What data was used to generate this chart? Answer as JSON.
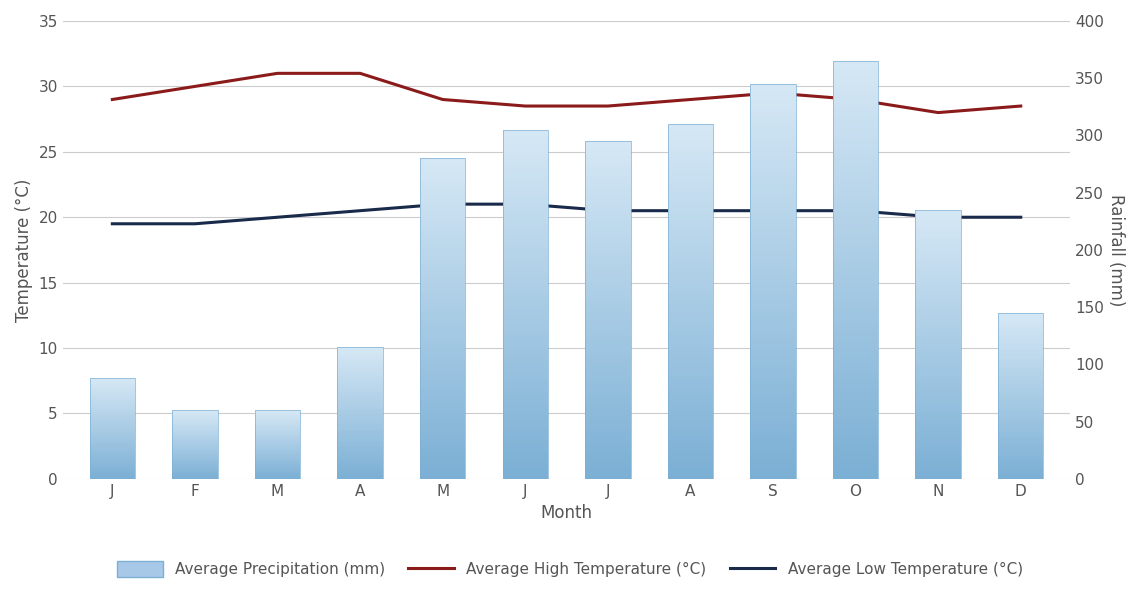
{
  "months": [
    "J",
    "F",
    "M",
    "A",
    "M",
    "J",
    "J",
    "A",
    "S",
    "O",
    "N",
    "D"
  ],
  "precipitation_mm": [
    88,
    60,
    60,
    115,
    280,
    305,
    295,
    310,
    345,
    365,
    235,
    145
  ],
  "avg_high_temp": [
    29,
    30,
    31,
    31,
    29,
    28.5,
    28.5,
    29,
    29.5,
    29,
    28,
    28.5
  ],
  "avg_low_temp": [
    19.5,
    19.5,
    20,
    20.5,
    21,
    21,
    20.5,
    20.5,
    20.5,
    20.5,
    20,
    20
  ],
  "bar_color_bottom": "#7bafd4",
  "bar_color_top": "#d6e8f5",
  "bar_edge_color": "#7bafd4",
  "line_high_color": "#8b1a1a",
  "line_low_color": "#1a2a4a",
  "temp_ylim": [
    0,
    35
  ],
  "rain_ylim": [
    0,
    400
  ],
  "temp_yticks": [
    0,
    5,
    10,
    15,
    20,
    25,
    30,
    35
  ],
  "rain_yticks": [
    0,
    50,
    100,
    150,
    200,
    250,
    300,
    350,
    400
  ],
  "xlabel": "Month",
  "ylabel_left": "Temperature (°C)",
  "ylabel_right": "Rainfall (mm)",
  "legend_precip": "Average Precipitation (mm)",
  "legend_high": "Average High Temperature (°C)",
  "legend_low": "Average Low Temperature (°C)",
  "background_color": "#ffffff",
  "grid_color": "#cccccc",
  "label_fontsize": 12,
  "tick_fontsize": 11,
  "legend_fontsize": 11
}
